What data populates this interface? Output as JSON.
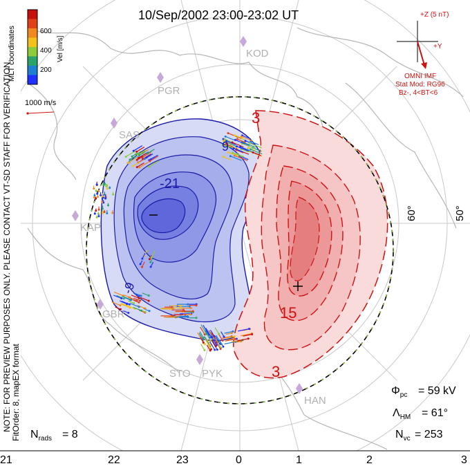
{
  "title": "10/Sep/2002 23:00-23:02 UT",
  "colorbar": {
    "title": "Vel [m/s]",
    "ticks": [
      "600",
      "400",
      "200"
    ],
    "colors": [
      "#2030ff",
      "#1f7fd0",
      "#2aa36a",
      "#8ecb3a",
      "#f2c21b",
      "#f08a1f",
      "#e0401a",
      "#c80f10"
    ]
  },
  "coords_label": "MLT coordinates",
  "scale_vector_label": "1000 m/s",
  "vertical_note_1": "NOTE: FOR PREVIEW PURPOSES ONLY. PLEASE CONTACT VT-SD STAFF FOR VERIFICATION.",
  "vertical_note_2": "FitOrder: 8, mapEX format",
  "imf": {
    "z_label": "+Z (5 nT)",
    "y_label": "+Y",
    "source": "OMNI IMF",
    "model": "Stat Mod: RG96",
    "condition": "Bz-, 4<BT<6"
  },
  "stations": [
    "KOD",
    "PGR",
    "SAS",
    "KAP",
    "GBR",
    "STO",
    "PYK",
    "HAN"
  ],
  "lat_labels": [
    "60°",
    "50°"
  ],
  "contour_labels": [
    "-21",
    "-9",
    "9",
    "3",
    "15",
    "3",
    "-"
  ],
  "stats": {
    "phi_pc": "= 59 kV",
    "lambda_hm": "= 61°",
    "n_vc": "= 253",
    "n_rads": "= 8"
  },
  "mlt_ticks": [
    "21",
    "22",
    "23",
    "0",
    "1",
    "2",
    "3"
  ],
  "accent": {
    "positive": "#cc1111",
    "negative": "#1a1aa8",
    "hmb": "#8ecb3a"
  }
}
